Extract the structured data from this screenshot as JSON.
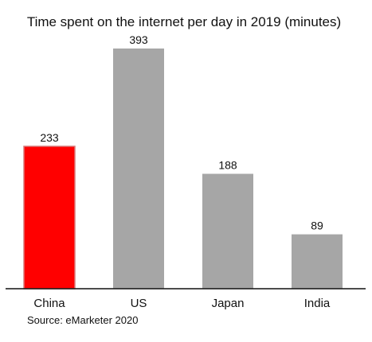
{
  "chart_data": {
    "type": "bar",
    "title": "Time spent on the internet per day in 2019 (minutes)",
    "categories": [
      "China",
      "US",
      "Japan",
      "India"
    ],
    "values": [
      233,
      393,
      188,
      89
    ],
    "value_labels": [
      "233",
      "393",
      "188",
      "89"
    ],
    "xlabel": "",
    "ylabel": "",
    "ylim": [
      0,
      393
    ],
    "grid": false,
    "legend": "none",
    "bar_colors": [
      "#ff0000",
      "#a6a6a6",
      "#a6a6a6",
      "#a6a6a6"
    ],
    "source": "Source: eMarketer 2020"
  },
  "colors": {
    "highlight": "#ff0000",
    "highlight_border": "#d97a7a",
    "default_bar": "#a6a6a6",
    "axis": "#111111"
  }
}
